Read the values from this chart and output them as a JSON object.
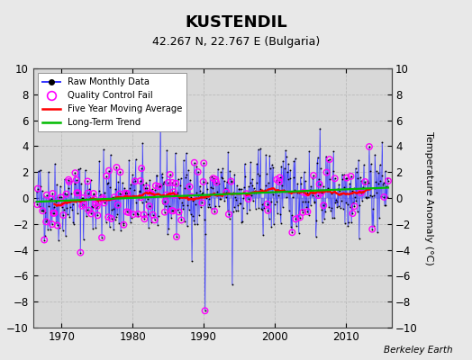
{
  "title": "KUSTENDIL",
  "subtitle": "42.267 N, 22.767 E (Bulgaria)",
  "ylabel": "Temperature Anomaly (°C)",
  "credit": "Berkeley Earth",
  "xlim": [
    1966.0,
    2016.5
  ],
  "ylim": [
    -10,
    10
  ],
  "yticks": [
    -10,
    -8,
    -6,
    -4,
    -2,
    0,
    2,
    4,
    6,
    8,
    10
  ],
  "xticks": [
    1970,
    1980,
    1990,
    2000,
    2010
  ],
  "raw_color": "#3333FF",
  "qc_color": "#FF00FF",
  "ma_color": "#FF0000",
  "trend_color": "#00BB00",
  "plot_bg": "#D8D8D8",
  "fig_bg": "#E8E8E8",
  "grid_color": "#BBBBBB",
  "seed_raw": 42,
  "seed_qc": 123,
  "n_months": 594,
  "start_year": 1966.5,
  "trend_slope": 0.022,
  "trend_intercept": -0.3,
  "noise_std": 1.55,
  "qc_prob_early": 0.38,
  "qc_prob_late": 0.14,
  "qc_split": 240
}
